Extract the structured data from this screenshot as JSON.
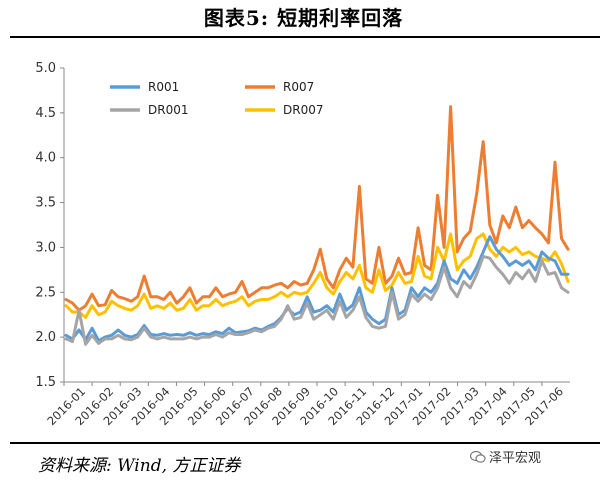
{
  "header": {
    "title": "图表5:   短期利率回落"
  },
  "footer": {
    "source": "资料来源: Wind, 方正证券",
    "watermark": "泽平宏观"
  },
  "colors": {
    "R001": "#5b9bd5",
    "R007": "#ed7d31",
    "DR001": "#a5a5a5",
    "DR007": "#ffc000"
  },
  "chart_data": {
    "type": "line",
    "ylim": [
      1.5,
      5.0
    ],
    "yticks": [
      "1.5",
      "2.0",
      "2.5",
      "3.0",
      "3.5",
      "4.0",
      "4.5",
      "5.0"
    ],
    "x_labels": [
      "2016-01",
      "2016-02",
      "2016-03",
      "2016-04",
      "2016-05",
      "2016-06",
      "2016-07",
      "2016-08",
      "2016-09",
      "2016-10",
      "2016-11",
      "2016-12",
      "2017-01",
      "2017-02",
      "2017-03",
      "2017-04",
      "2017-05",
      "2017-06"
    ],
    "legend": [
      "R001",
      "R007",
      "DR001",
      "DR007"
    ],
    "series": [
      {
        "name": "R001",
        "values": [
          2.02,
          1.98,
          2.08,
          1.97,
          2.1,
          1.96,
          2.0,
          2.02,
          2.08,
          2.02,
          2.0,
          2.03,
          2.13,
          2.03,
          2.02,
          2.04,
          2.02,
          2.03,
          2.02,
          2.05,
          2.02,
          2.04,
          2.03,
          2.06,
          2.04,
          2.1,
          2.05,
          2.06,
          2.07,
          2.1,
          2.08,
          2.12,
          2.15,
          2.22,
          2.32,
          2.25,
          2.28,
          2.45,
          2.28,
          2.3,
          2.35,
          2.28,
          2.48,
          2.3,
          2.36,
          2.55,
          2.28,
          2.2,
          2.15,
          2.2,
          2.55,
          2.25,
          2.3,
          2.55,
          2.45,
          2.55,
          2.5,
          2.6,
          2.85,
          2.65,
          2.6,
          2.75,
          2.65,
          2.78,
          2.95,
          3.12,
          2.98,
          2.9,
          2.8,
          2.85,
          2.8,
          2.85,
          2.75,
          2.95,
          2.88,
          2.85,
          2.7,
          2.7
        ]
      },
      {
        "name": "R007",
        "values": [
          2.42,
          2.38,
          2.3,
          2.35,
          2.48,
          2.35,
          2.36,
          2.52,
          2.45,
          2.43,
          2.4,
          2.45,
          2.68,
          2.45,
          2.45,
          2.42,
          2.5,
          2.38,
          2.45,
          2.55,
          2.38,
          2.45,
          2.45,
          2.55,
          2.45,
          2.48,
          2.5,
          2.62,
          2.45,
          2.5,
          2.55,
          2.55,
          2.58,
          2.6,
          2.55,
          2.62,
          2.58,
          2.6,
          2.75,
          2.98,
          2.65,
          2.55,
          2.75,
          2.88,
          2.78,
          3.68,
          2.65,
          2.6,
          3.0,
          2.6,
          2.68,
          2.88,
          2.7,
          2.72,
          3.22,
          2.8,
          2.75,
          3.58,
          3.0,
          4.57,
          2.95,
          3.1,
          3.18,
          3.6,
          4.18,
          3.25,
          3.05,
          3.35,
          3.22,
          3.45,
          3.22,
          3.3,
          3.22,
          3.15,
          3.05,
          3.95,
          3.1,
          2.98
        ]
      },
      {
        "name": "DR001",
        "values": [
          1.98,
          1.95,
          2.3,
          1.92,
          2.02,
          1.93,
          1.98,
          1.98,
          2.02,
          1.98,
          1.97,
          2.0,
          2.1,
          2.0,
          1.98,
          2.0,
          1.98,
          1.98,
          1.98,
          2.0,
          1.98,
          2.0,
          2.0,
          2.03,
          2.0,
          2.05,
          2.03,
          2.03,
          2.05,
          2.08,
          2.06,
          2.1,
          2.12,
          2.2,
          2.35,
          2.2,
          2.22,
          2.38,
          2.2,
          2.25,
          2.3,
          2.2,
          2.4,
          2.22,
          2.3,
          2.45,
          2.22,
          2.12,
          2.1,
          2.12,
          2.5,
          2.2,
          2.25,
          2.48,
          2.4,
          2.48,
          2.42,
          2.55,
          2.78,
          2.55,
          2.45,
          2.62,
          2.55,
          2.7,
          2.9,
          2.88,
          2.78,
          2.7,
          2.6,
          2.72,
          2.65,
          2.75,
          2.62,
          2.85,
          2.7,
          2.72,
          2.55,
          2.5
        ]
      },
      {
        "name": "DR007",
        "values": [
          2.35,
          2.28,
          2.28,
          2.22,
          2.35,
          2.25,
          2.28,
          2.4,
          2.35,
          2.32,
          2.3,
          2.35,
          2.48,
          2.32,
          2.35,
          2.32,
          2.38,
          2.3,
          2.32,
          2.42,
          2.3,
          2.35,
          2.35,
          2.42,
          2.35,
          2.38,
          2.4,
          2.45,
          2.35,
          2.4,
          2.42,
          2.42,
          2.45,
          2.5,
          2.45,
          2.5,
          2.48,
          2.5,
          2.6,
          2.72,
          2.55,
          2.48,
          2.62,
          2.72,
          2.65,
          2.8,
          2.55,
          2.5,
          2.75,
          2.52,
          2.58,
          2.72,
          2.6,
          2.62,
          2.9,
          2.68,
          2.65,
          3.0,
          2.85,
          3.15,
          2.75,
          2.85,
          2.9,
          3.1,
          3.15,
          2.98,
          2.9,
          3.0,
          2.95,
          3.0,
          2.92,
          2.95,
          2.9,
          2.88,
          2.85,
          2.95,
          2.82,
          2.62
        ]
      }
    ]
  }
}
